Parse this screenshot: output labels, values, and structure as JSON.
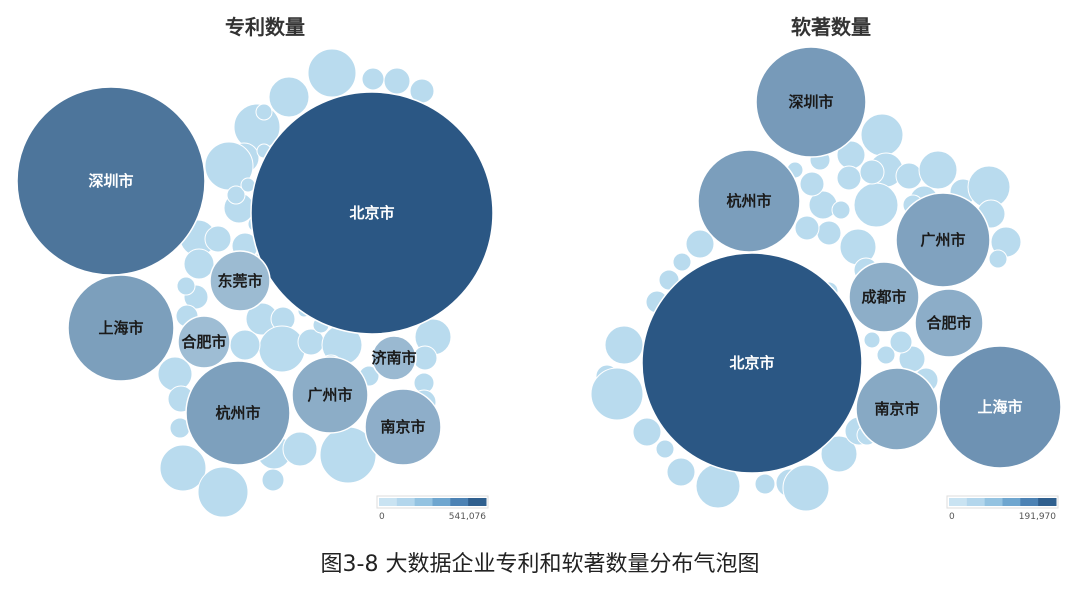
{
  "caption": "图3-8 大数据企业专利和软著数量分布气泡图",
  "chart_data": [
    {
      "type": "bubble",
      "title": "专利数量",
      "value_range": [
        0,
        541076
      ],
      "legend_min_label": "0",
      "legend_max_label": "541,076",
      "color_scale": [
        "#c9e3f2",
        "#2b5784"
      ],
      "labeled_bubbles": [
        {
          "name": "北京市",
          "value": 541076
        },
        {
          "name": "深圳市",
          "value": 328000
        },
        {
          "name": "上海市",
          "value": 105000
        },
        {
          "name": "杭州市",
          "value": 102000
        },
        {
          "name": "广州市",
          "value": 55000
        },
        {
          "name": "南京市",
          "value": 50000
        },
        {
          "name": "济南市",
          "value": 22000
        },
        {
          "name": "东莞市",
          "value": 18000
        },
        {
          "name": "合肥市",
          "value": 14000
        }
      ]
    },
    {
      "type": "bubble",
      "title": "软著数量",
      "value_range": [
        0,
        191970
      ],
      "legend_min_label": "0",
      "legend_max_label": "191,970",
      "color_scale": [
        "#c9e3f2",
        "#2b5784"
      ],
      "labeled_bubbles": [
        {
          "name": "北京市",
          "value": 191970
        },
        {
          "name": "上海市",
          "value": 57000
        },
        {
          "name": "深圳市",
          "value": 44000
        },
        {
          "name": "杭州市",
          "value": 39000
        },
        {
          "name": "南京市",
          "value": 24000
        },
        {
          "name": "广州市",
          "value": 33000
        },
        {
          "name": "成都市",
          "value": 18000
        },
        {
          "name": "合肥市",
          "value": 19000
        }
      ]
    }
  ]
}
